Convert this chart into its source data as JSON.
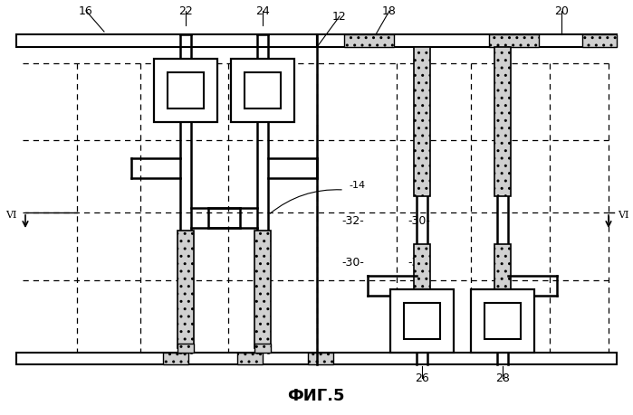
{
  "bg_color": "#ffffff",
  "lw_thick": 1.8,
  "lw_thin": 1.2,
  "lw_dash": 0.9,
  "stipple_fc": "#d0d0d0",
  "title": "ФИГ.5"
}
